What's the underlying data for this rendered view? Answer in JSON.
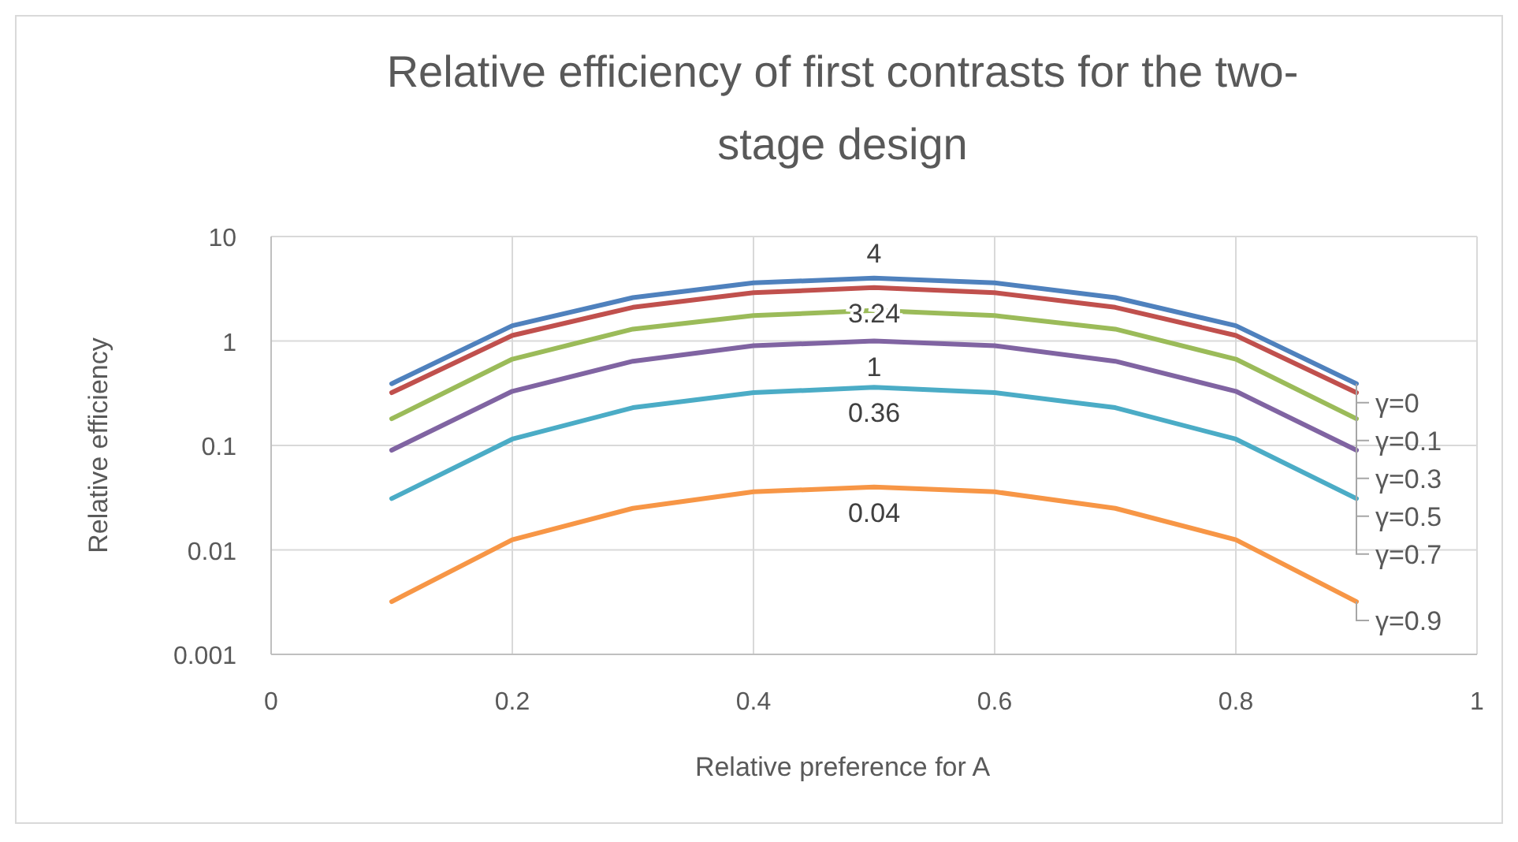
{
  "chart_data": {
    "type": "line",
    "title": "Relative efficiency of first contrasts for the two-stage design",
    "xlabel": "Relative preference for A",
    "ylabel": "Relative efficiency",
    "x": [
      0.1,
      0.2,
      0.3,
      0.4,
      0.5,
      0.6,
      0.7,
      0.8,
      0.9
    ],
    "series": [
      {
        "name": "γ=0",
        "color": "#4f81bd",
        "values": [
          0.39,
          1.4,
          2.6,
          3.6,
          4,
          3.6,
          2.6,
          1.4,
          0.39
        ],
        "value_labels": [
          null,
          null,
          null,
          null,
          "4",
          null,
          null,
          null,
          null
        ]
      },
      {
        "name": "γ=0.1",
        "color": "#c0504d",
        "values": [
          0.32,
          1.13,
          2.1,
          2.9,
          3.24,
          2.9,
          2.1,
          1.13,
          0.32
        ],
        "value_labels": [
          null,
          null,
          null,
          null,
          "3.24",
          null,
          null,
          null,
          null
        ]
      },
      {
        "name": "γ=0.3",
        "color": "#9bbb59",
        "values": [
          0.18,
          0.67,
          1.3,
          1.75,
          1.96,
          1.75,
          1.3,
          0.67,
          0.18
        ]
      },
      {
        "name": "γ=0.5",
        "color": "#8064a2",
        "values": [
          0.09,
          0.33,
          0.64,
          0.9,
          1,
          0.9,
          0.64,
          0.33,
          0.09
        ],
        "value_labels": [
          null,
          null,
          null,
          null,
          "1",
          null,
          null,
          null,
          null
        ]
      },
      {
        "name": "γ=0.7",
        "color": "#4bacc6",
        "values": [
          0.031,
          0.115,
          0.23,
          0.32,
          0.36,
          0.32,
          0.23,
          0.115,
          0.031
        ],
        "value_labels": [
          null,
          null,
          null,
          null,
          "0.36",
          null,
          null,
          null,
          null
        ]
      },
      {
        "name": "γ=0.9",
        "color": "#f79646",
        "values": [
          0.0032,
          0.0125,
          0.025,
          0.036,
          0.04,
          0.036,
          0.025,
          0.0125,
          0.0032
        ],
        "value_labels": [
          null,
          null,
          null,
          null,
          "0.04",
          null,
          null,
          null,
          null
        ]
      }
    ],
    "xlim": [
      0,
      1
    ],
    "xticks": [
      0,
      0.2,
      0.4,
      0.6,
      0.8,
      1
    ],
    "ylim": [
      0.001,
      10
    ],
    "yticks": [
      0.001,
      0.01,
      0.1,
      1,
      10
    ],
    "log": "y",
    "grid": true,
    "legend": false,
    "marker": "none",
    "line_style": "solid"
  }
}
